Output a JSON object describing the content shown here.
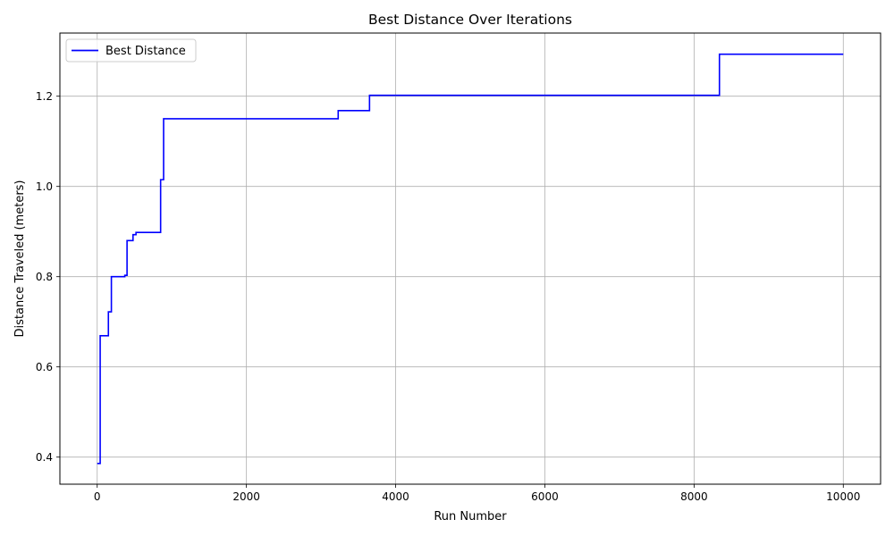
{
  "chart_data": {
    "type": "line",
    "title": "Best Distance Over Iterations",
    "xlabel": "Run Number",
    "ylabel": "Distance Traveled (meters)",
    "xlim": [
      -500,
      10500
    ],
    "ylim": [
      0.34,
      1.34
    ],
    "xticks": [
      0,
      2000,
      4000,
      6000,
      8000,
      10000
    ],
    "yticks": [
      0.4,
      0.6,
      0.8,
      1.0,
      1.2
    ],
    "xtick_labels": [
      "0",
      "2000",
      "4000",
      "6000",
      "8000",
      "10000"
    ],
    "ytick_labels": [
      "0.4",
      "0.6",
      "0.8",
      "1.0",
      "1.2"
    ],
    "grid": true,
    "legend_position": "top-left",
    "step": "post",
    "series": [
      {
        "name": "Best Distance",
        "color": "#0000ff",
        "x": [
          0,
          40,
          150,
          190,
          370,
          400,
          480,
          520,
          850,
          890,
          3230,
          3650,
          8340,
          10000
        ],
        "y": [
          0.386,
          0.669,
          0.722,
          0.8,
          0.803,
          0.88,
          0.893,
          0.898,
          1.015,
          1.15,
          1.168,
          1.202,
          1.293,
          1.293
        ]
      }
    ]
  }
}
